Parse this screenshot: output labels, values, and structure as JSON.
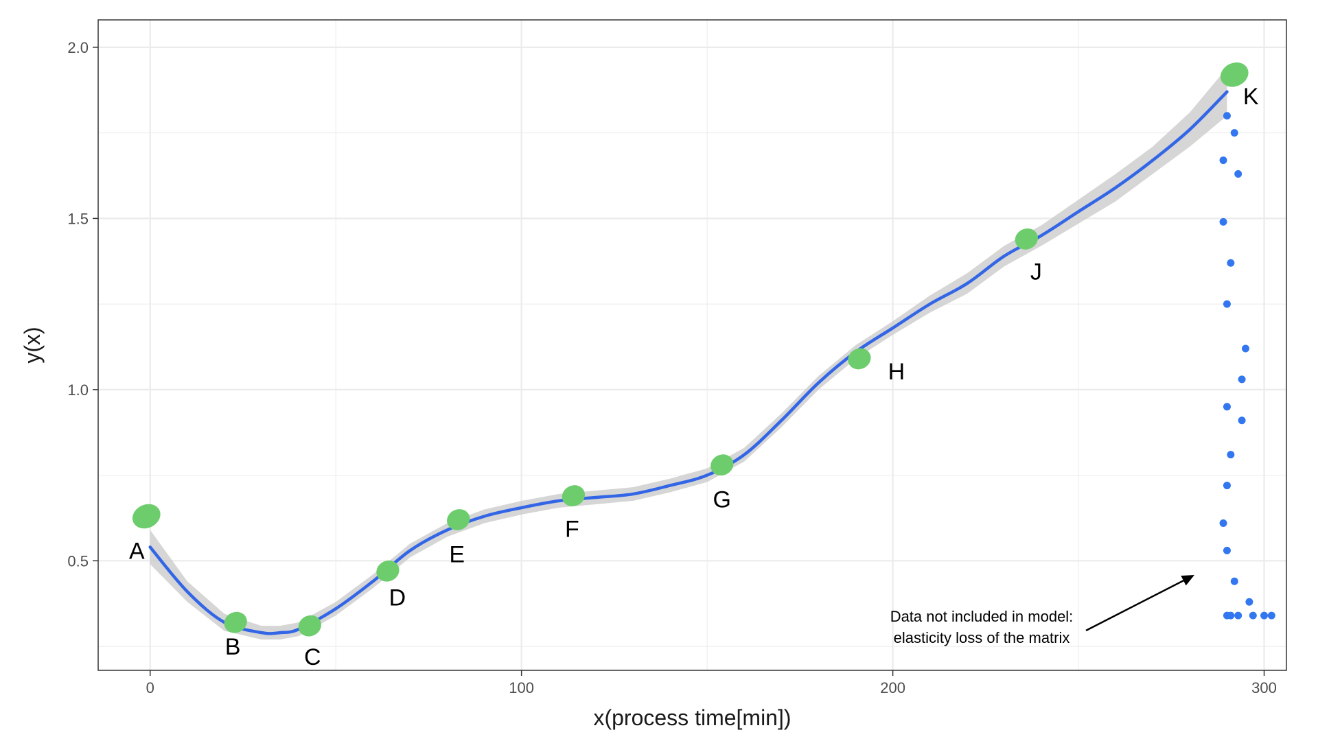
{
  "chart_data": {
    "type": "line",
    "xlabel": "x(process time[min])",
    "ylabel": "y(x)",
    "xlim": [
      -14,
      306
    ],
    "ylim": [
      0.18,
      2.08
    ],
    "x_ticks": [
      0,
      100,
      200,
      300
    ],
    "x_tick_labels": [
      "0",
      "100",
      "200",
      "300"
    ],
    "y_ticks": [
      0.5,
      1.0,
      1.5,
      2.0
    ],
    "y_tick_labels": [
      "0.5",
      "1.0",
      "1.5",
      "2.0"
    ],
    "grid": true,
    "legend": "none",
    "colors": {
      "panel_border": "#333333",
      "grid": "#ebebeb",
      "smooth_line": "#3366e6",
      "confidence_band": "#c8c8c8",
      "key_points": "#6dcd6d",
      "excluded_points": "#3377f0"
    },
    "smooth_line": {
      "x": [
        0,
        10,
        20,
        30,
        35,
        40,
        50,
        60,
        70,
        80,
        90,
        100,
        110,
        120,
        130,
        140,
        150,
        160,
        170,
        180,
        190,
        200,
        210,
        220,
        230,
        240,
        250,
        260,
        270,
        280,
        290
      ],
      "y": [
        0.54,
        0.41,
        0.32,
        0.29,
        0.29,
        0.3,
        0.36,
        0.44,
        0.53,
        0.59,
        0.63,
        0.655,
        0.675,
        0.685,
        0.695,
        0.72,
        0.75,
        0.81,
        0.91,
        1.02,
        1.11,
        1.18,
        1.25,
        1.31,
        1.39,
        1.45,
        1.52,
        1.59,
        1.67,
        1.76,
        1.87
      ]
    },
    "confidence_band_halfwidth": [
      0.05,
      0.03,
      0.025,
      0.02,
      0.02,
      0.02,
      0.02,
      0.02,
      0.02,
      0.02,
      0.02,
      0.02,
      0.02,
      0.02,
      0.02,
      0.02,
      0.02,
      0.02,
      0.02,
      0.02,
      0.02,
      0.02,
      0.025,
      0.03,
      0.03,
      0.03,
      0.035,
      0.04,
      0.04,
      0.05,
      0.07
    ],
    "key_points": [
      {
        "label": "A",
        "x": -1,
        "y": 0.63
      },
      {
        "label": "B",
        "x": 23,
        "y": 0.32
      },
      {
        "label": "C",
        "x": 43,
        "y": 0.31
      },
      {
        "label": "D",
        "x": 64,
        "y": 0.47
      },
      {
        "label": "E",
        "x": 83,
        "y": 0.62
      },
      {
        "label": "F",
        "x": 114,
        "y": 0.69
      },
      {
        "label": "G",
        "x": 154,
        "y": 0.78
      },
      {
        "label": "H",
        "x": 191,
        "y": 1.09
      },
      {
        "label": "J",
        "x": 236,
        "y": 1.44
      },
      {
        "label": "K",
        "x": 292,
        "y": 1.92
      }
    ],
    "excluded_points": {
      "x": [
        290,
        292,
        289,
        293,
        289,
        291,
        290,
        295,
        294,
        290,
        294,
        291,
        290,
        289,
        290,
        292,
        296,
        290,
        291,
        293,
        297,
        300,
        302
      ],
      "y": [
        1.8,
        1.75,
        1.67,
        1.63,
        1.49,
        1.37,
        1.25,
        1.12,
        1.03,
        0.95,
        0.91,
        0.81,
        0.72,
        0.61,
        0.53,
        0.44,
        0.38,
        0.34,
        0.34,
        0.34,
        0.34,
        0.34,
        0.34
      ]
    },
    "annotation": {
      "line1": "Data not included in model:",
      "line2": "elasticity loss of the matrix"
    }
  }
}
